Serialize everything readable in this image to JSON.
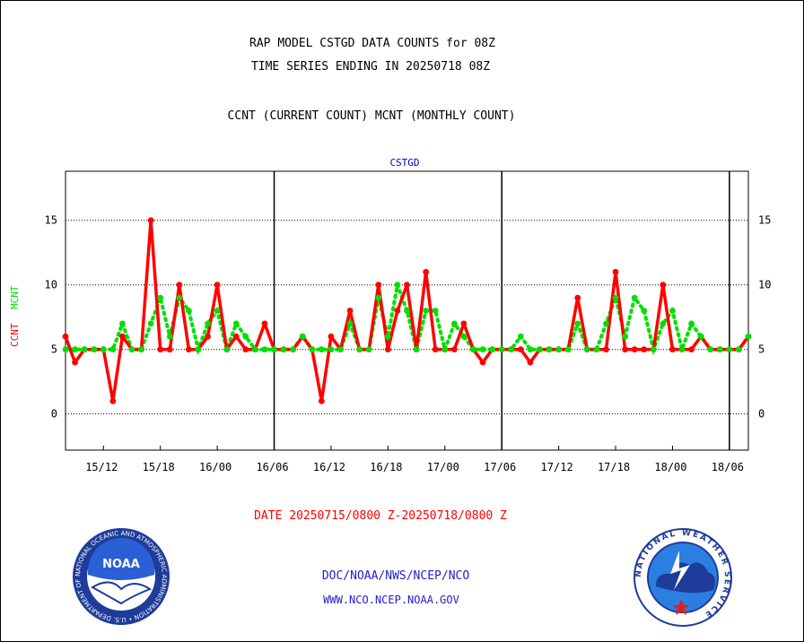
{
  "header": {
    "title_line1": "RAP MODEL CSTGD DATA COUNTS for 08Z",
    "title_line2": "TIME SERIES ENDING IN 20250718 08Z",
    "title_line3": "CCNT (CURRENT COUNT) MCNT (MONTHLY COUNT)"
  },
  "footer": {
    "date_range": "DATE 20250715/0800 Z-20250718/0800 Z",
    "org_line": "DOC/NOAA/NWS/NCEP/NCO",
    "url_line": "WWW.NCO.NCEP.NOAA.GOV"
  },
  "logos": {
    "noaa_text": "NOAA",
    "noaa_ring_text": "NATIONAL OCEANIC AND ATMOSPHERIC ADMINISTRATION • U.S. DEPARTMENT OF COMMERCE •",
    "nws_ring_text": "NATIONAL WEATHER SERVICE"
  },
  "colors": {
    "ccnt": "#ff0000",
    "mcnt": "#00e000",
    "panel_title": "#0000cc",
    "footer_red": "#ff0000",
    "footer_blue": "#2020cc"
  },
  "chart_data": {
    "type": "line",
    "title": "CSTGD",
    "ylabel_series": [
      "CCNT",
      "MCNT"
    ],
    "ylim": [
      -2.8,
      18.8
    ],
    "yticks": [
      0,
      5,
      10,
      15
    ],
    "x_hours_range": [
      0,
      72
    ],
    "xtick_hours": [
      4,
      10,
      16,
      22,
      28,
      34,
      40,
      46,
      52,
      58,
      64,
      70
    ],
    "xtick_labels": [
      "15/12",
      "15/18",
      "16/00",
      "16/06",
      "16/12",
      "16/18",
      "17/00",
      "17/06",
      "17/12",
      "17/18",
      "18/00",
      "18/06"
    ],
    "day_boundaries": [
      22,
      46,
      70
    ],
    "grid": true,
    "series": [
      {
        "name": "CCNT",
        "values": [
          6,
          4,
          5,
          5,
          5,
          1,
          6,
          5,
          5,
          15,
          5,
          5,
          10,
          5,
          5,
          6,
          10,
          5,
          6,
          5,
          5,
          7,
          5,
          5,
          5,
          6,
          5,
          1,
          6,
          5,
          8,
          5,
          5,
          10,
          5,
          8,
          10,
          5,
          11,
          5,
          5,
          5,
          7,
          5,
          4,
          5,
          5,
          5,
          5,
          4,
          5,
          5,
          5,
          5,
          9,
          5,
          5,
          5,
          11,
          5,
          5,
          5,
          5,
          10,
          5,
          5,
          5,
          6,
          5,
          5,
          5,
          5,
          6
        ]
      },
      {
        "name": "MCNT",
        "values": [
          5,
          5,
          5,
          5,
          5,
          5,
          7,
          5,
          5,
          7,
          9,
          6,
          9,
          8,
          5,
          7,
          8,
          5,
          7,
          6,
          5,
          5,
          5,
          5,
          5,
          6,
          5,
          5,
          5,
          5,
          7,
          5,
          5,
          9,
          6,
          10,
          8,
          5,
          8,
          8,
          5,
          7,
          6,
          5,
          5,
          5,
          5,
          5,
          6,
          5,
          5,
          5,
          5,
          5,
          7,
          5,
          5,
          7,
          9,
          6,
          9,
          8,
          5,
          7,
          8,
          5,
          7,
          6,
          5,
          5,
          5,
          5,
          6
        ]
      }
    ]
  }
}
